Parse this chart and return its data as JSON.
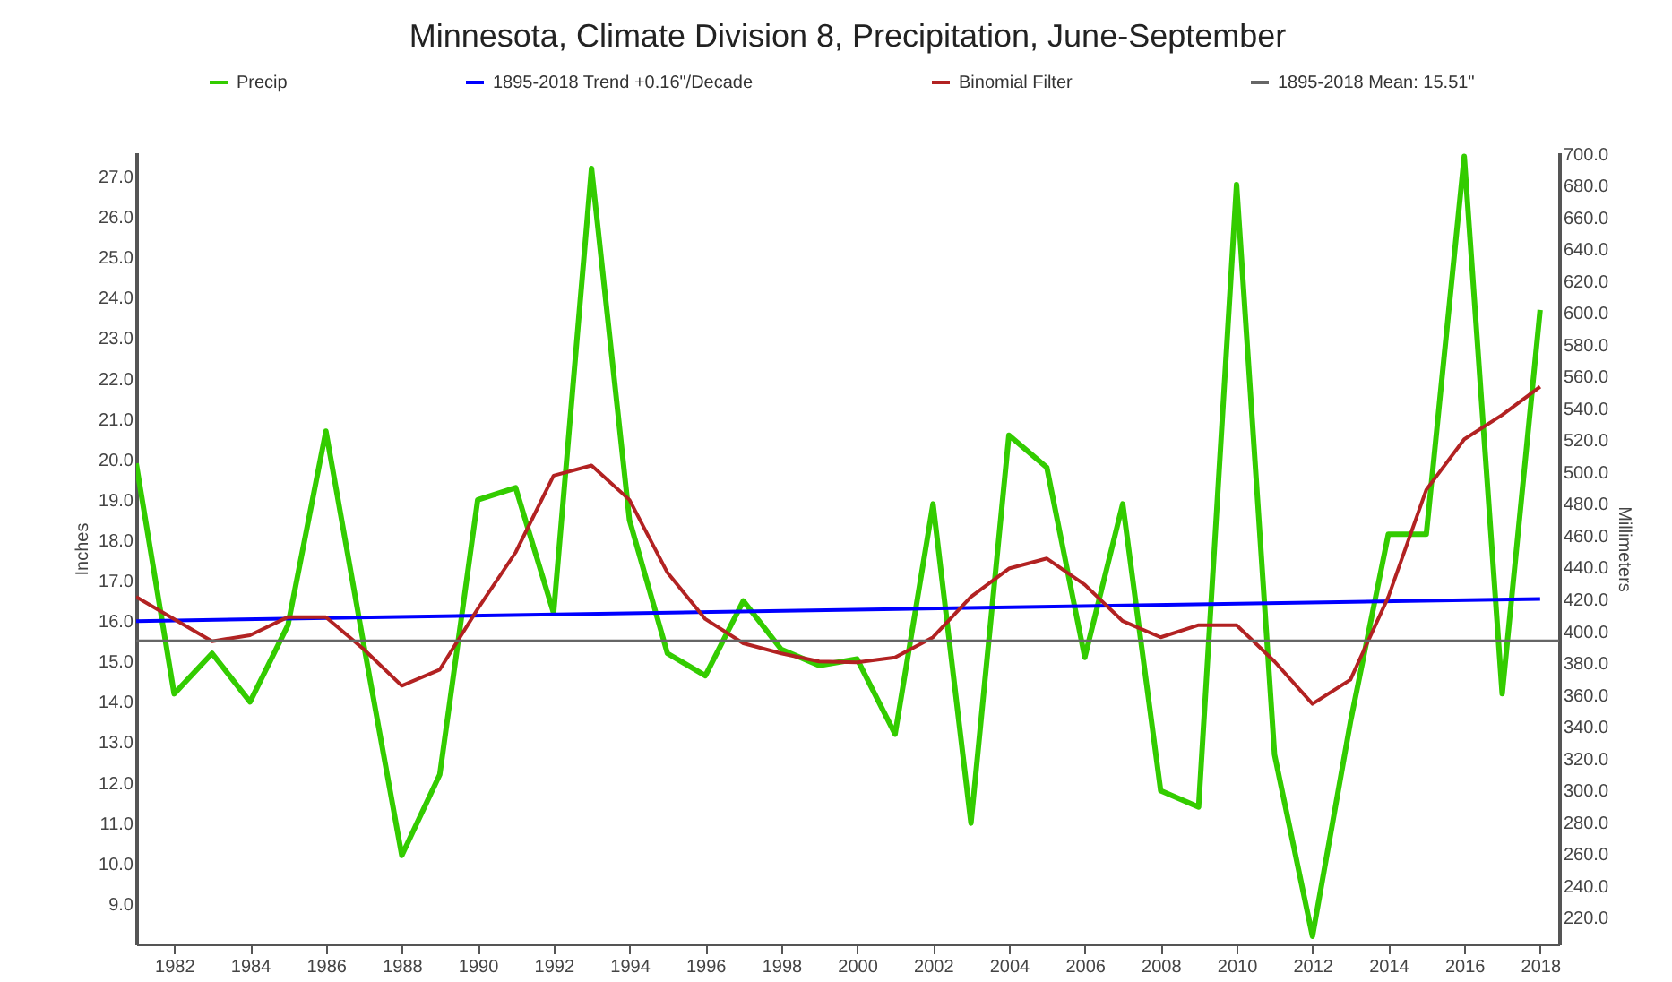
{
  "chart_data": {
    "type": "line",
    "title": "Minnesota, Climate Division 8, Precipitation, June-September",
    "ylabel": "Inches",
    "y2label": "Millimeters",
    "x": [
      1981,
      1982,
      1983,
      1984,
      1985,
      1986,
      1987,
      1988,
      1989,
      1990,
      1991,
      1992,
      1993,
      1994,
      1995,
      1996,
      1997,
      1998,
      1999,
      2000,
      2001,
      2002,
      2003,
      2004,
      2005,
      2006,
      2007,
      2008,
      2009,
      2010,
      2011,
      2012,
      2013,
      2014,
      2015,
      2016,
      2017,
      2018
    ],
    "series": [
      {
        "name": "Precip",
        "color": "#33cc00",
        "values": [
          19.9,
          14.2,
          15.2,
          14.0,
          15.9,
          20.7,
          15.4,
          10.2,
          12.2,
          19.0,
          19.3,
          16.2,
          27.2,
          18.5,
          15.2,
          14.65,
          16.5,
          15.3,
          14.9,
          15.06,
          13.2,
          18.9,
          11.0,
          20.6,
          19.8,
          15.1,
          18.9,
          11.8,
          11.4,
          26.8,
          12.7,
          8.2,
          13.5,
          18.15,
          18.15,
          27.5,
          14.2,
          23.7
        ]
      },
      {
        "name": "1895-2018 Trend +0.16\"/Decade",
        "color": "#0000ff",
        "x": [
          1981,
          2018
        ],
        "values": [
          16.0,
          16.55
        ]
      },
      {
        "name": "Binomial Filter",
        "color": "#b22222",
        "values": [
          16.6,
          16.05,
          15.5,
          15.65,
          16.1,
          16.1,
          15.3,
          14.4,
          14.8,
          16.3,
          17.7,
          19.6,
          19.85,
          19.0,
          17.2,
          16.05,
          15.45,
          15.2,
          15.0,
          14.98,
          15.1,
          15.6,
          16.6,
          17.3,
          17.55,
          16.9,
          16.0,
          15.6,
          15.9,
          15.9,
          15.0,
          13.95,
          14.55,
          16.6,
          19.25,
          20.5,
          21.1,
          21.8
        ]
      }
    ],
    "ref_lines": [
      {
        "axis": "y",
        "value": 15.51,
        "label": "1895-2018 Mean: 15.51\"",
        "color": "#666666"
      }
    ],
    "xlim": [
      1981,
      2018.5
    ],
    "xticks": [
      1982,
      1984,
      1986,
      1988,
      1990,
      1992,
      1994,
      1996,
      1998,
      2000,
      2002,
      2004,
      2006,
      2008,
      2010,
      2012,
      2014,
      2016,
      2018
    ],
    "ylim": [
      8.0,
      27.6
    ],
    "yticks": [
      {
        "value": 9,
        "label": "9.0"
      },
      {
        "value": 10,
        "label": "10.0"
      },
      {
        "value": 11,
        "label": "11.0"
      },
      {
        "value": 12,
        "label": "12.0"
      },
      {
        "value": 13,
        "label": "13.0"
      },
      {
        "value": 14,
        "label": "14.0"
      },
      {
        "value": 15,
        "label": "15.0"
      },
      {
        "value": 16,
        "label": "16.0"
      },
      {
        "value": 17,
        "label": "17.0"
      },
      {
        "value": 18,
        "label": "18.0"
      },
      {
        "value": 19,
        "label": "19.0"
      },
      {
        "value": 20,
        "label": "20.0"
      },
      {
        "value": 21,
        "label": "21.0"
      },
      {
        "value": 22,
        "label": "22.0"
      },
      {
        "value": 23,
        "label": "23.0"
      },
      {
        "value": 24,
        "label": "24.0"
      },
      {
        "value": 25,
        "label": "25.0"
      },
      {
        "value": 26,
        "label": "26.0"
      },
      {
        "value": 27,
        "label": "27.0"
      }
    ],
    "y2lim": [
      203.2,
      701.0
    ],
    "y2ticks": [
      {
        "value": 220,
        "label": "220.0"
      },
      {
        "value": 240,
        "label": "240.0"
      },
      {
        "value": 260,
        "label": "260.0"
      },
      {
        "value": 280,
        "label": "280.0"
      },
      {
        "value": 300,
        "label": "300.0"
      },
      {
        "value": 320,
        "label": "320.0"
      },
      {
        "value": 340,
        "label": "340.0"
      },
      {
        "value": 360,
        "label": "360.0"
      },
      {
        "value": 380,
        "label": "380.0"
      },
      {
        "value": 400,
        "label": "400.0"
      },
      {
        "value": 420,
        "label": "420.0"
      },
      {
        "value": 440,
        "label": "440.0"
      },
      {
        "value": 460,
        "label": "460.0"
      },
      {
        "value": 480,
        "label": "480.0"
      },
      {
        "value": 500,
        "label": "500.0"
      },
      {
        "value": 520,
        "label": "520.0"
      },
      {
        "value": 540,
        "label": "540.0"
      },
      {
        "value": 560,
        "label": "560.0"
      },
      {
        "value": 580,
        "label": "580.0"
      },
      {
        "value": 600,
        "label": "600.0"
      },
      {
        "value": 620,
        "label": "620.0"
      },
      {
        "value": 640,
        "label": "640.0"
      },
      {
        "value": 660,
        "label": "660.0"
      },
      {
        "value": 680,
        "label": "680.0"
      },
      {
        "value": 700,
        "label": "700.0"
      }
    ],
    "grid": false,
    "legend": "top",
    "marker": "none",
    "line_style": "solid"
  }
}
